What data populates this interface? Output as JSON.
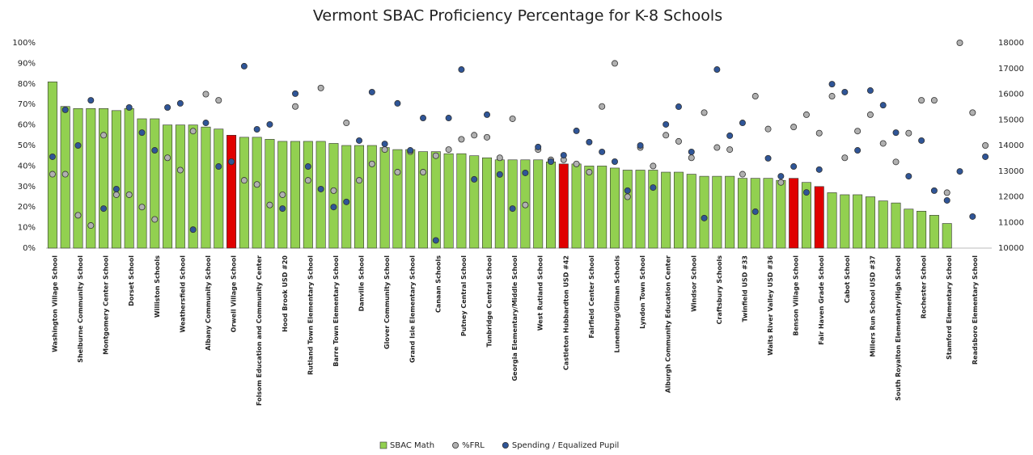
{
  "chart_data": {
    "type": "bar",
    "title": "Vermont SBAC Proficiency Percentage for K-8 Schools",
    "categories": [
      "Washington Village School",
      null,
      "Shelburne Community School",
      null,
      "Montgomery Center School",
      null,
      "Dorset School",
      null,
      "Williston Schools",
      null,
      "Weathersfield School",
      null,
      "Albany Community School",
      null,
      "Orwell Village School",
      null,
      "Folsom Education and Community Center",
      null,
      "Hood Brook USD #20",
      null,
      "Rutland Town Elementary School",
      null,
      "Barre Town Elementary School",
      null,
      "Danville School",
      null,
      "Glover Community School",
      null,
      "Grand Isle Elementary School",
      null,
      "Canaan Schools",
      null,
      "Putney Central School",
      null,
      "Tunbridge Central School",
      null,
      "Georgia Elementary/Middle School",
      null,
      "West Rutland School",
      null,
      "Castleton Hubbardton USD #42",
      null,
      "Fairfield Center School",
      null,
      "Lunenburg/Gilman Schools",
      null,
      "Lyndon Town School",
      null,
      "Alburgh Community Education Center",
      null,
      "Windsor School",
      null,
      "Craftsbury Schools",
      null,
      "Twinfield USD #33",
      null,
      "Waits River Valley USD #36",
      null,
      "Benson Village School",
      null,
      "Fair Haven Grade School",
      null,
      "Cabot School",
      null,
      "Millers Run School USD #37",
      null,
      "South Royalton Elementary/High School",
      null,
      "Rochester School",
      null,
      "Stamford Elementary School",
      null,
      "Readsboro Elementary School",
      null
    ],
    "series": [
      {
        "name": "SBAC Math",
        "type": "bar",
        "color": "#92d050",
        "colors": [
          "#92d050",
          "#92d050",
          "#92d050",
          "#92d050",
          "#92d050",
          "#92d050",
          "#92d050",
          "#92d050",
          "#92d050",
          "#92d050",
          "#92d050",
          "#92d050",
          "#92d050",
          "#92d050",
          "#e00000",
          "#92d050",
          "#92d050",
          "#92d050",
          "#92d050",
          "#92d050",
          "#92d050",
          "#92d050",
          "#92d050",
          "#92d050",
          "#92d050",
          "#92d050",
          "#92d050",
          "#92d050",
          "#92d050",
          "#92d050",
          "#92d050",
          "#92d050",
          "#92d050",
          "#92d050",
          "#92d050",
          "#92d050",
          "#92d050",
          "#92d050",
          "#92d050",
          "#92d050",
          "#e00000",
          "#92d050",
          "#92d050",
          "#92d050",
          "#92d050",
          "#92d050",
          "#92d050",
          "#92d050",
          "#92d050",
          "#92d050",
          "#92d050",
          "#92d050",
          "#92d050",
          "#92d050",
          "#92d050",
          "#92d050",
          "#92d050",
          "#92d050",
          "#e00000",
          "#92d050",
          "#e00000",
          "#92d050",
          "#92d050",
          "#92d050",
          "#92d050",
          "#92d050",
          "#92d050",
          "#92d050",
          "#92d050",
          "#92d050",
          "#92d050",
          "#92d050",
          "#92d050",
          "#92d050"
        ],
        "values": [
          81,
          69,
          68,
          68,
          68,
          67,
          68,
          63,
          63,
          60,
          60,
          60,
          59,
          58,
          55,
          54,
          54,
          53,
          52,
          52,
          52,
          52,
          51,
          50,
          50,
          50,
          49,
          48,
          48,
          47,
          47,
          46,
          46,
          45,
          44,
          43,
          43,
          43,
          43,
          42,
          41,
          41,
          40,
          40,
          39,
          38,
          38,
          38,
          37,
          37,
          36,
          35,
          35,
          35,
          34,
          34,
          34,
          33,
          34,
          32,
          30,
          27,
          26,
          26,
          25,
          23,
          22,
          19,
          18,
          16,
          12,
          null,
          null,
          null
        ]
      },
      {
        "name": "%FRL",
        "type": "scatter",
        "color": "#b0b0b0",
        "values": [
          36,
          36,
          16,
          11,
          55,
          26,
          26,
          20,
          14,
          44,
          38,
          57,
          75,
          72,
          42,
          33,
          31,
          21,
          26,
          69,
          33,
          78,
          28,
          61,
          33,
          41,
          48,
          37,
          47,
          37,
          45,
          48,
          53,
          55,
          54,
          44,
          63,
          21,
          48,
          43,
          43,
          41,
          37,
          69,
          90,
          25,
          49,
          40,
          55,
          52,
          44,
          66,
          49,
          48,
          36,
          74,
          58,
          32,
          59,
          65,
          56,
          74,
          44,
          57,
          65,
          51,
          42,
          56,
          72,
          72,
          27,
          100,
          66,
          50
        ]
      },
      {
        "name": "Spending / Equalized Pupil",
        "type": "scatter",
        "axis": "y2",
        "color": "#2f5597",
        "values": [
          13560,
          15390,
          14000,
          15760,
          11540,
          12300,
          15480,
          14500,
          13810,
          15480,
          15640,
          10720,
          14880,
          13180,
          13370,
          17090,
          14630,
          14820,
          11540,
          16020,
          13180,
          12300,
          11600,
          11800,
          14190,
          16080,
          14060,
          15640,
          13810,
          15070,
          10300,
          15070,
          16960,
          12680,
          15200,
          12870,
          11540,
          12930,
          13940,
          13370,
          13620,
          14570,
          14130,
          13750,
          13370,
          12240,
          14000,
          12360,
          14820,
          15510,
          13750,
          11170,
          16960,
          14380,
          14880,
          11420,
          13500,
          12800,
          13180,
          12170,
          13060,
          16390,
          16080,
          13810,
          16140,
          15570,
          14500,
          12800,
          14190,
          12240,
          11860,
          12990,
          11230,
          13560
        ]
      }
    ],
    "ylim": [
      0,
      100
    ],
    "yticks": [
      {
        "value": 0,
        "label": "0%"
      },
      {
        "value": 10,
        "label": "10%"
      },
      {
        "value": 20,
        "label": "20%"
      },
      {
        "value": 30,
        "label": "30%"
      },
      {
        "value": 40,
        "label": "40%"
      },
      {
        "value": 50,
        "label": "50%"
      },
      {
        "value": 60,
        "label": "60%"
      },
      {
        "value": 70,
        "label": "70%"
      },
      {
        "value": 80,
        "label": "80%"
      },
      {
        "value": 90,
        "label": "90%"
      },
      {
        "value": 100,
        "label": "100%"
      }
    ],
    "y2lim": [
      10000,
      18000
    ],
    "y2ticks": [
      10000,
      11000,
      12000,
      13000,
      14000,
      15000,
      16000,
      17000,
      18000
    ],
    "legend": "bottom"
  }
}
